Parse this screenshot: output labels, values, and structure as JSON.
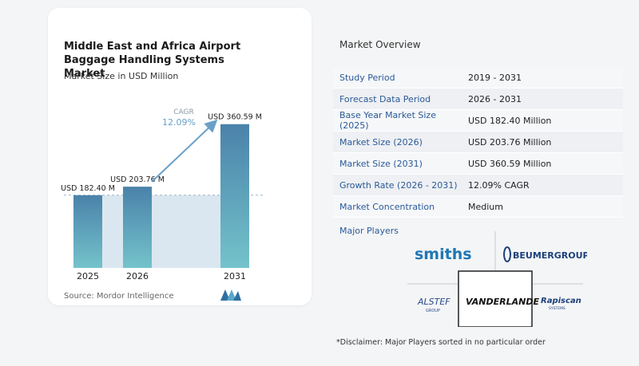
{
  "chart_data": {
    "type": "bar",
    "title": "Middle East and Africa Airport Baggage Handling Systems Market",
    "subtitle": "Market Size in USD Million",
    "categories": [
      "2025",
      "2026",
      "2031"
    ],
    "values": [
      182.4,
      203.76,
      360.59
    ],
    "value_labels": [
      "USD 182.40 M",
      "USD 203.76 M",
      "USD 360.59 M"
    ],
    "cagr_label": "CAGR",
    "cagr_value": "12.09%",
    "ylim": [
      0,
      380
    ],
    "colors": {
      "bar_top": "#4a82aa",
      "bar_bottom": "#74c3cb",
      "baseline_fill": "#dbe7f0",
      "arrow": "#6aa0c8"
    }
  },
  "source": "Source: Mordor Intelligence",
  "overview": {
    "title": "Market Overview",
    "rows": [
      {
        "label": "Study Period",
        "value": "2019 - 2031"
      },
      {
        "label": "Forecast Data Period",
        "value": "2026 - 2031"
      },
      {
        "label": "Base Year Market Size (2025)",
        "value": "USD 182.40 Million"
      },
      {
        "label": "Market Size (2026)",
        "value": "USD 203.76 Million"
      },
      {
        "label": "Market Size (2031)",
        "value": "USD 360.59 Million"
      },
      {
        "label": "Growth Rate (2026 - 2031)",
        "value": "12.09% CAGR"
      },
      {
        "label": "Market Concentration",
        "value": "Medium"
      }
    ]
  },
  "players": {
    "title": "Major Players",
    "logos": [
      "smiths",
      "BEUMERGROUP",
      "ALSTEF",
      "GROUP",
      "VANDERLANDE",
      "Rapiscan",
      "SYSTEMS"
    ]
  },
  "disclaimer": "*Disclaimer: Major Players sorted in no particular order"
}
